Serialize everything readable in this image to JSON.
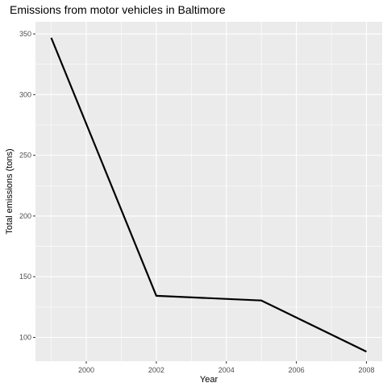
{
  "chart_data": {
    "type": "line",
    "title": "Emissions from motor vehicles in Baltimore",
    "xlabel": "Year",
    "ylabel": "Total emissions (tons)",
    "x": [
      1999,
      2002,
      2005,
      2008
    ],
    "series": [
      {
        "values": [
          346.8,
          134.3,
          130.4,
          88.3
        ]
      }
    ],
    "xlim": [
      1998.55,
      2008.45
    ],
    "ylim": [
      80.4,
      360.0
    ],
    "x_ticks": [
      2000,
      2002,
      2004,
      2006,
      2008
    ],
    "x_tick_labels": [
      "2000",
      "2002",
      "2004",
      "2006",
      "2008"
    ],
    "y_ticks": [
      100,
      150,
      200,
      250,
      300,
      350
    ],
    "y_tick_labels": [
      "100",
      "150",
      "200",
      "250",
      "300",
      "350"
    ],
    "grid": true,
    "colors": {
      "panel": "#ebebeb",
      "grid_major": "#ffffff",
      "line": "#000000"
    }
  }
}
